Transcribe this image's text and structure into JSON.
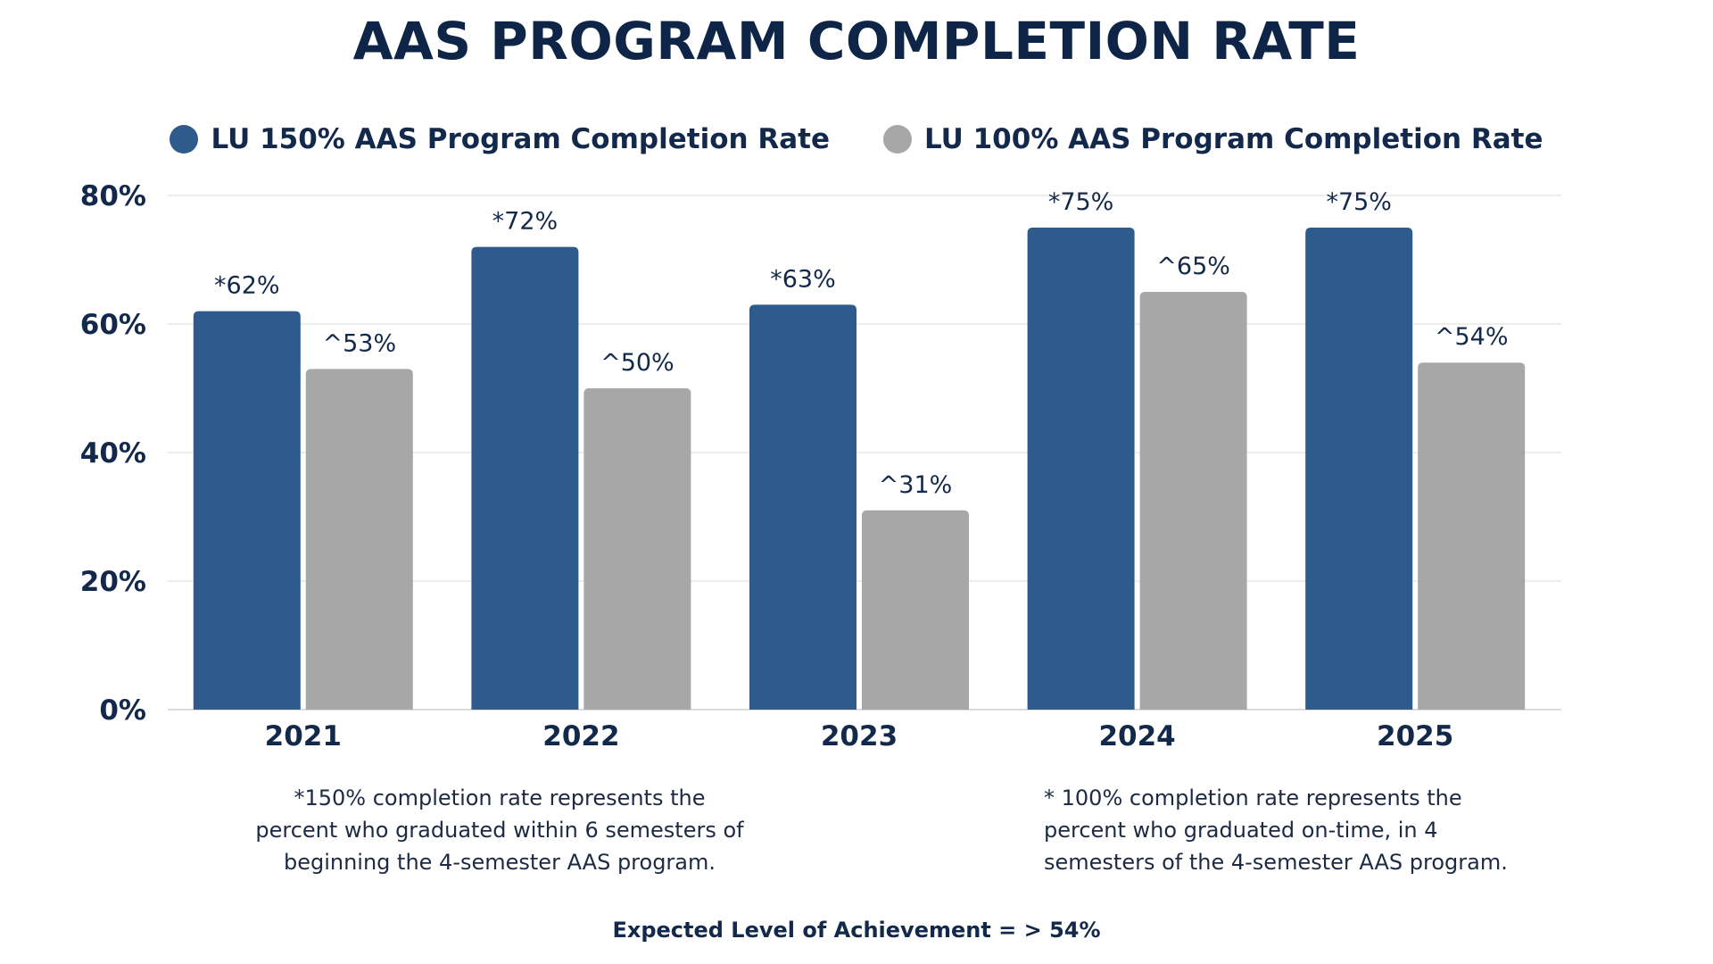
{
  "colors": {
    "series_150": "#2f5a8c",
    "series_100": "#a7a7a7",
    "text": "#13294b",
    "grid": "#e2e2e2"
  },
  "legend": {
    "items": [
      {
        "label": "LU 150% AAS Program Completion Rate",
        "color": "#2f5a8c"
      },
      {
        "label": "LU 100% AAS Program Completion Rate",
        "color": "#a7a7a7"
      }
    ]
  },
  "footnotes": {
    "left_line1": "*150% completion rate represents the",
    "left_line2": "percent who graduated within 6 semesters of",
    "left_line3": "beginning the 4-semester AAS program.",
    "right_line1": "* 100% completion rate represents the",
    "right_line2": "percent who graduated on-time, in 4",
    "right_line3": "semesters of the 4-semester AAS program."
  },
  "expected": "Expected Level of Achievement = > 54%",
  "chart_data": {
    "type": "bar",
    "title": "AAS PROGRAM COMPLETION RATE",
    "xlabel": "",
    "ylabel": "",
    "categories": [
      "2021",
      "2022",
      "2023",
      "2024",
      "2025"
    ],
    "series": [
      {
        "name": "LU 150% AAS Program Completion Rate",
        "values": [
          62,
          72,
          63,
          75,
          75
        ],
        "labels": [
          "*62%",
          "*72%",
          "*63%",
          "*75%",
          "*75%"
        ]
      },
      {
        "name": "LU 100% AAS Program Completion Rate",
        "values": [
          53,
          50,
          31,
          65,
          54
        ],
        "labels": [
          "^53%",
          "^50%",
          "^31%",
          "^65%",
          "^54%"
        ]
      }
    ],
    "ylim": [
      0,
      80
    ],
    "yticks": [
      0,
      20,
      40,
      60,
      80
    ],
    "ytick_labels": [
      "0%",
      "20%",
      "40%",
      "60%",
      "80%"
    ],
    "grid": true,
    "legend_position": "top"
  }
}
